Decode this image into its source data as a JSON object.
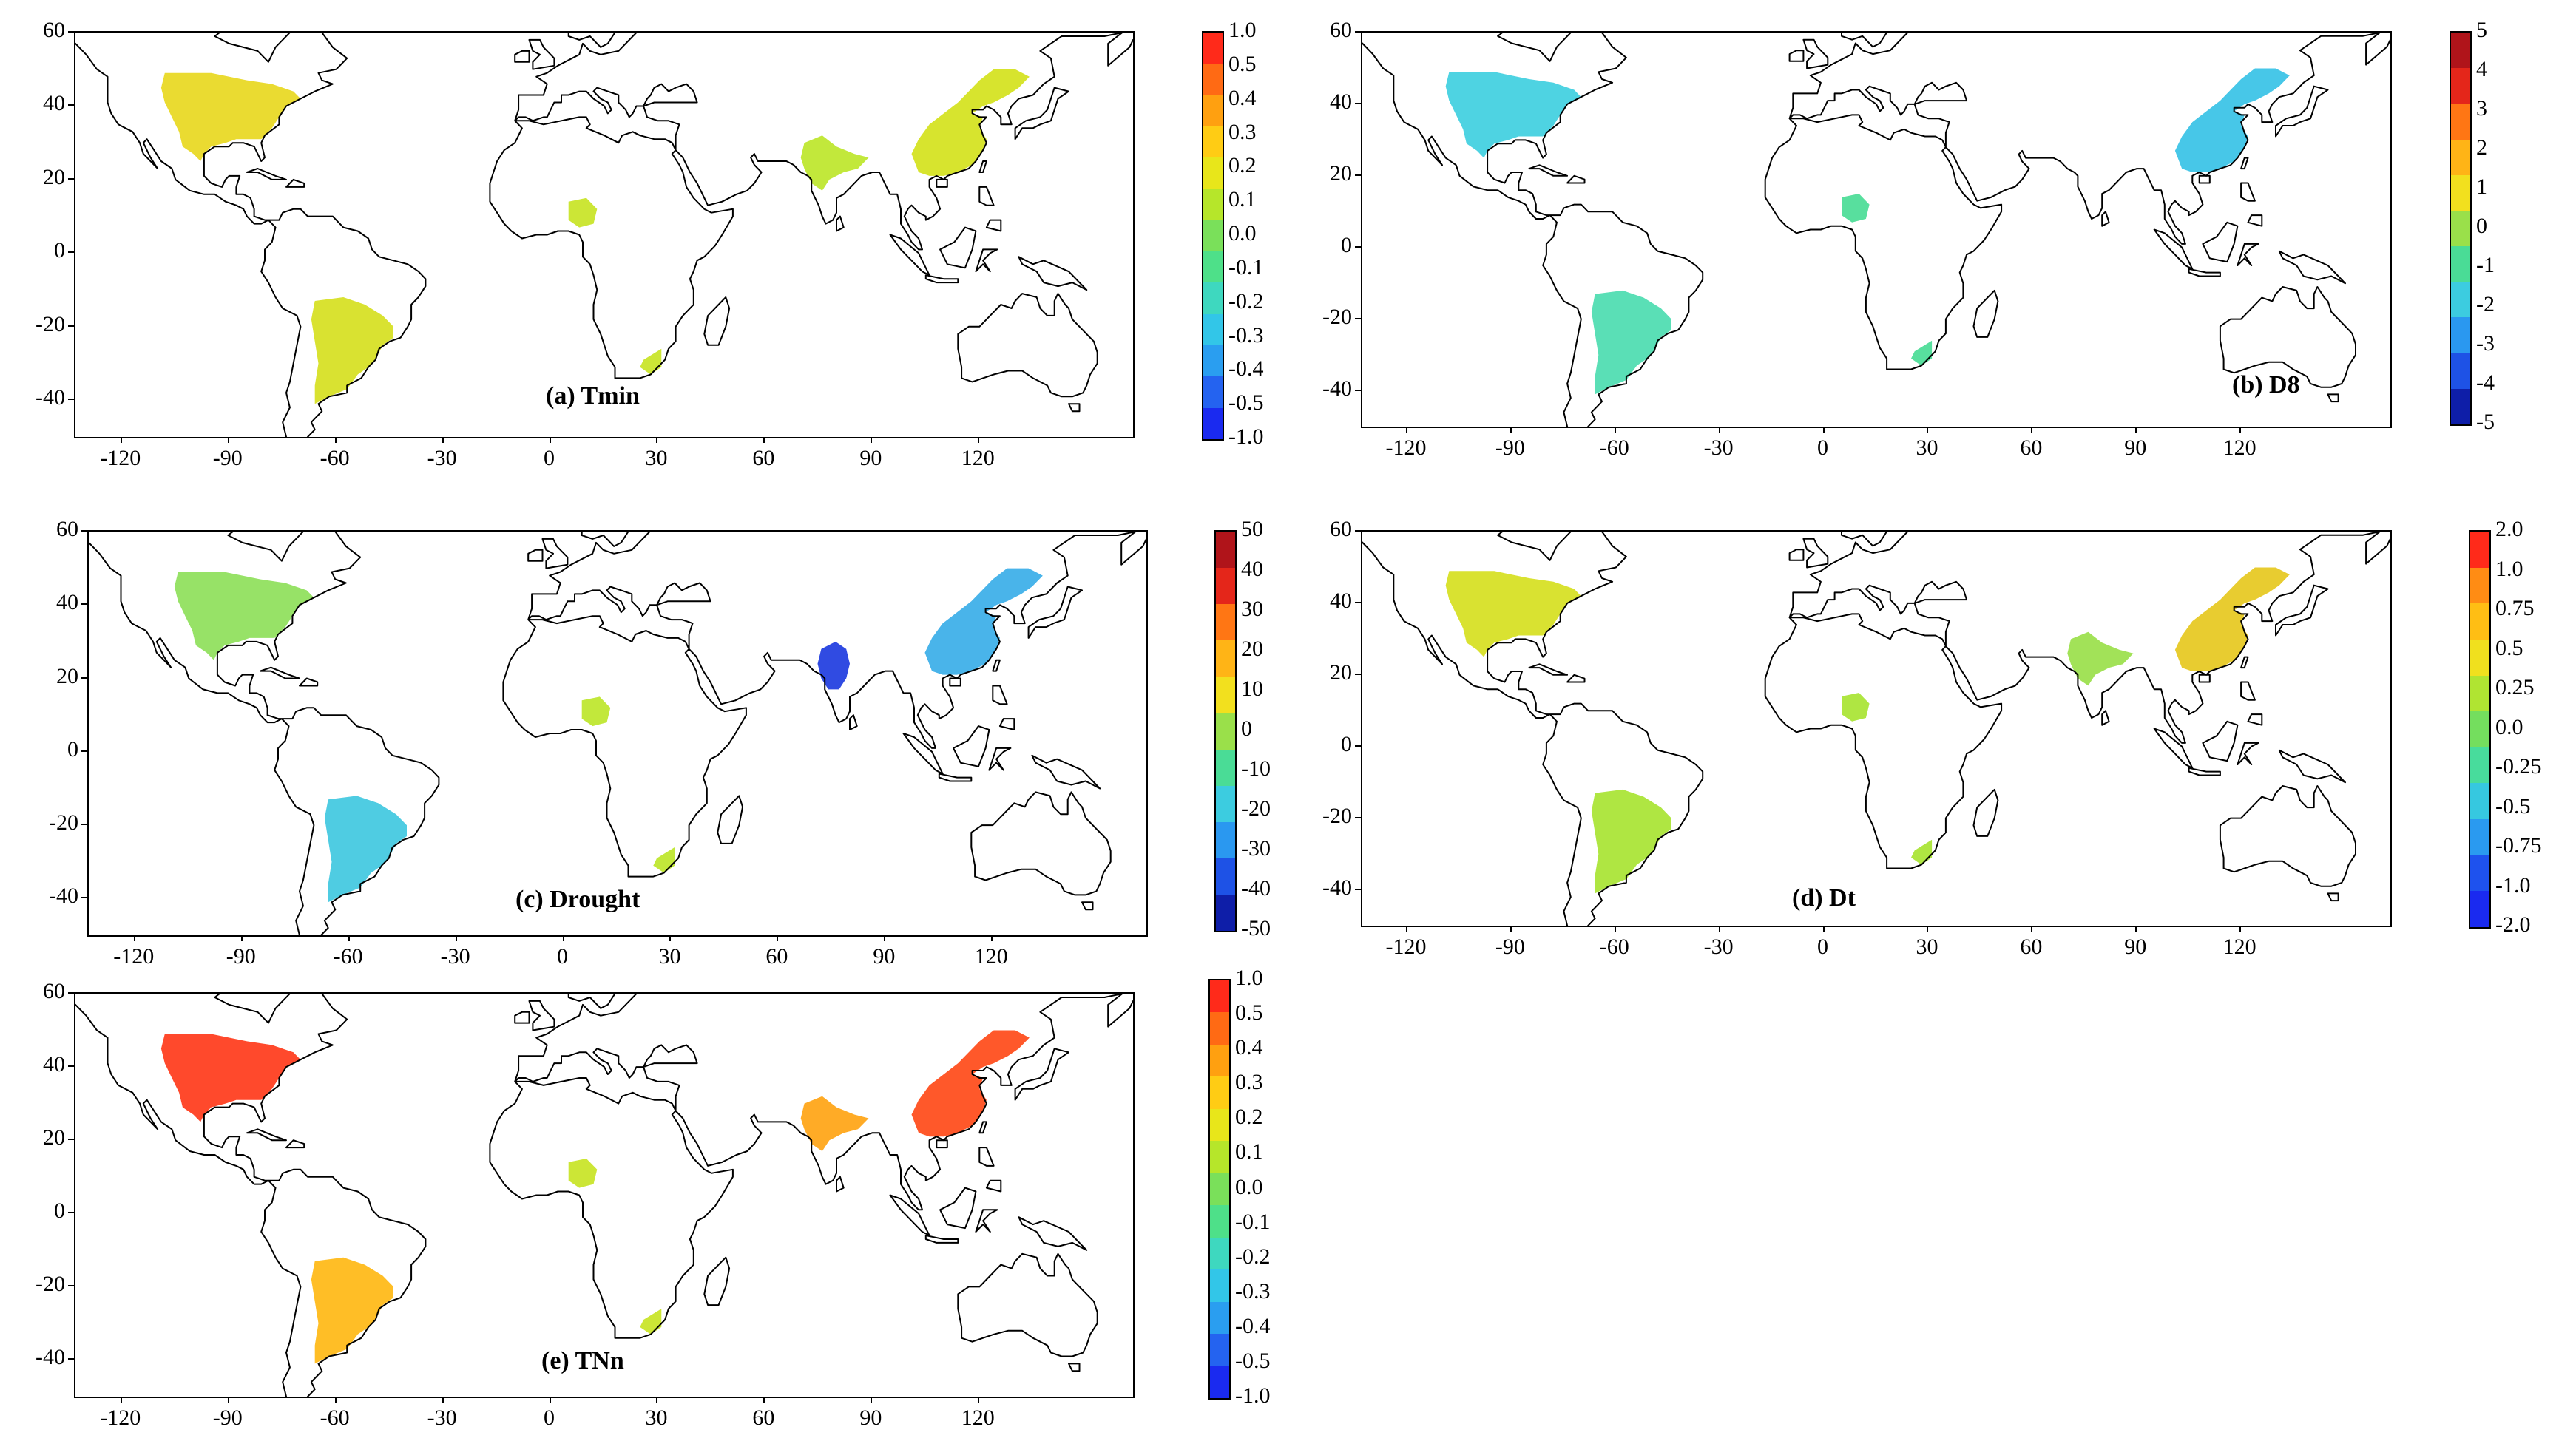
{
  "axes": {
    "x_ticks": [
      "-120",
      "-90",
      "-60",
      "-30",
      "0",
      "30",
      "60",
      "90",
      "120"
    ],
    "x_values": [
      -120,
      -90,
      -60,
      -30,
      0,
      30,
      60,
      90,
      120
    ],
    "y_ticks": [
      "60",
      "40",
      "20",
      "0",
      "-20",
      "-40"
    ],
    "y_values": [
      60,
      40,
      20,
      0,
      -20,
      -40
    ],
    "lon_range": [
      -133,
      163
    ],
    "lat_range": [
      -50,
      60
    ]
  },
  "panels": [
    {
      "id": "a",
      "title": "(a) Tmin",
      "colorbar": {
        "labels": [
          "1.0",
          "0.5",
          "0.4",
          "0.3",
          "0.2",
          "0.1",
          "0.0",
          "-0.1",
          "-0.2",
          "-0.3",
          "-0.4",
          "-0.5",
          "-1.0"
        ],
        "colors": [
          "#ff2a1a",
          "#ff6a14",
          "#ffa010",
          "#ffcc14",
          "#e8e61a",
          "#b6e62a",
          "#7ae05a",
          "#4ee089",
          "#3ed8bf",
          "#32c6e8",
          "#2a9ef0",
          "#2463f0",
          "#1a2af0"
        ]
      },
      "regions": [
        {
          "name": "north-america",
          "color": "#e8d820"
        },
        {
          "name": "south-america",
          "color": "#d6e020"
        },
        {
          "name": "east-asia",
          "color": "#d4e21c"
        },
        {
          "name": "south-asia",
          "color": "#bde62a"
        },
        {
          "name": "africa",
          "color": "#c8e425"
        }
      ]
    },
    {
      "id": "b",
      "title": "(b) D8",
      "colorbar": {
        "labels": [
          "5",
          "4",
          "3",
          "2",
          "1",
          "0",
          "-1",
          "-2",
          "-3",
          "-4",
          "-5"
        ],
        "colors": [
          "#b0141a",
          "#e4261a",
          "#ff7614",
          "#ffb416",
          "#f2e01e",
          "#9ae04a",
          "#4adc96",
          "#3ccce0",
          "#2a98f0",
          "#1e52e6",
          "#0e1ea8"
        ]
      },
      "regions": [
        {
          "name": "north-america",
          "color": "#3fcfe0"
        },
        {
          "name": "south-america",
          "color": "#4cdcb0"
        },
        {
          "name": "east-asia",
          "color": "#37c2e6"
        },
        {
          "name": "africa",
          "color": "#4adc96"
        }
      ]
    },
    {
      "id": "c",
      "title": "(c)  Drought",
      "colorbar": {
        "labels": [
          "50",
          "40",
          "30",
          "20",
          "10",
          "0",
          "-10",
          "-20",
          "-30",
          "-40",
          "-50"
        ],
        "colors": [
          "#b0141a",
          "#e4261a",
          "#ff7614",
          "#ffb416",
          "#f2e01e",
          "#9ae04a",
          "#4adc96",
          "#3ccce0",
          "#2a98f0",
          "#1e52e6",
          "#0e1ea8"
        ]
      },
      "regions": [
        {
          "name": "north-america",
          "color": "#8ee05a"
        },
        {
          "name": "south-america",
          "color": "#40c8e0"
        },
        {
          "name": "east-asia",
          "color": "#3aaee8"
        },
        {
          "name": "india",
          "color": "#1e3ce0"
        },
        {
          "name": "africa",
          "color": "#bde62a"
        }
      ]
    },
    {
      "id": "d",
      "title": "(d)  Dt",
      "colorbar": {
        "labels": [
          "2.0",
          "1.0",
          "0.75",
          "0.5",
          "0.25",
          "0.0",
          "-0.25",
          "-0.5",
          "-0.75",
          "-1.0",
          "-2.0"
        ],
        "colors": [
          "#ff2a1a",
          "#ff8c14",
          "#ffbe14",
          "#f0e01e",
          "#b0e432",
          "#74de5e",
          "#48dc9c",
          "#36c8e0",
          "#2a9af0",
          "#1e52ee",
          "#1a2af0"
        ]
      },
      "regions": [
        {
          "name": "north-america",
          "color": "#d6e020"
        },
        {
          "name": "south-america",
          "color": "#a8e432"
        },
        {
          "name": "east-asia",
          "color": "#e6c81e"
        },
        {
          "name": "south-asia",
          "color": "#9ae04a"
        },
        {
          "name": "africa",
          "color": "#a8e432"
        }
      ]
    },
    {
      "id": "e",
      "title": "(e)  TNn",
      "colorbar": {
        "labels": [
          "1.0",
          "0.5",
          "0.4",
          "0.3",
          "0.2",
          "0.1",
          "0.0",
          "-0.1",
          "-0.2",
          "-0.3",
          "-0.4",
          "-0.5",
          "-1.0"
        ],
        "colors": [
          "#ff2a1a",
          "#ff6a14",
          "#ffa010",
          "#ffcc14",
          "#e8e61a",
          "#b6e62a",
          "#7ae05a",
          "#4ee089",
          "#3ed8bf",
          "#32c6e8",
          "#2a9ef0",
          "#2463f0",
          "#1a2af0"
        ]
      },
      "regions": [
        {
          "name": "north-america",
          "color": "#ff3a1a"
        },
        {
          "name": "south-america",
          "color": "#ffb814"
        },
        {
          "name": "east-asia",
          "color": "#ff4a18"
        },
        {
          "name": "south-asia",
          "color": "#ffa414"
        },
        {
          "name": "africa",
          "color": "#c8e425"
        }
      ]
    }
  ]
}
